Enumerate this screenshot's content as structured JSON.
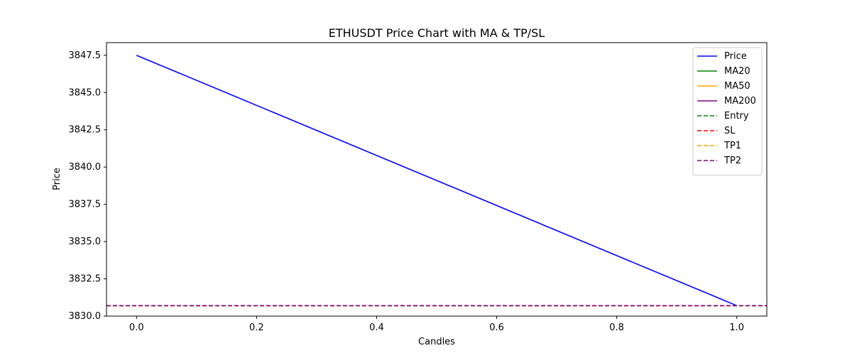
{
  "chart_data": {
    "type": "line",
    "title": "ETHUSDT Price Chart with MA & TP/SL",
    "xlabel": "Candles",
    "ylabel": "Price",
    "xlim": [
      -0.05,
      1.05
    ],
    "ylim": [
      3830.0,
      3848.35
    ],
    "xticks": [
      0.0,
      0.2,
      0.4,
      0.6,
      0.8,
      1.0
    ],
    "xtick_labels": [
      "0.0",
      "0.2",
      "0.4",
      "0.6",
      "0.8",
      "1.0"
    ],
    "yticks": [
      3830.0,
      3832.5,
      3835.0,
      3837.5,
      3840.0,
      3842.5,
      3845.0,
      3847.5
    ],
    "ytick_labels": [
      "3830.0",
      "3832.5",
      "3835.0",
      "3837.5",
      "3840.0",
      "3842.5",
      "3845.0",
      "3847.5"
    ],
    "grid": false,
    "legend_position": "top-right",
    "series": [
      {
        "name": "Price",
        "style": "solid",
        "color": "#0000ff",
        "x": [
          0,
          1
        ],
        "y": [
          3847.5,
          3830.7
        ]
      },
      {
        "name": "MA20",
        "style": "solid",
        "color": "#008000",
        "x": [],
        "y": []
      },
      {
        "name": "MA50",
        "style": "solid",
        "color": "#ffa500",
        "x": [],
        "y": []
      },
      {
        "name": "MA200",
        "style": "solid",
        "color": "#800080",
        "x": [],
        "y": []
      },
      {
        "name": "Entry",
        "style": "dashed",
        "color": "#008000",
        "hline": 3830.7
      },
      {
        "name": "SL",
        "style": "dashed",
        "color": "#ff0000",
        "hline": 3830.7
      },
      {
        "name": "TP1",
        "style": "dashed",
        "color": "#ffa500",
        "hline": 3830.7
      },
      {
        "name": "TP2",
        "style": "dashed",
        "color": "#800080",
        "hline": 3830.7
      }
    ]
  }
}
